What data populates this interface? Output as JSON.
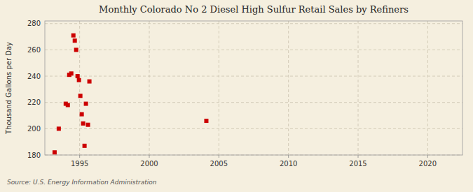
{
  "chart_data": {
    "type": "scatter",
    "title": "Monthly Colorado No 2 Diesel High Sulfur Retail Sales by Refiners",
    "ylabel": "Thousand Gallons per Day",
    "source": "Source: U.S. Energy Information Administration",
    "color": "#cc0000",
    "marker": "square",
    "grid": true,
    "xlim": [
      1992.5,
      2022.5
    ],
    "ylim": [
      180,
      282
    ],
    "xticks": [
      1995,
      2000,
      2005,
      2010,
      2015,
      2020
    ],
    "yticks": [
      180,
      200,
      220,
      240,
      260,
      280
    ],
    "x": [
      1993.2,
      1993.5,
      1994.0,
      1994.15,
      1994.25,
      1994.4,
      1994.55,
      1994.65,
      1994.75,
      1994.85,
      1994.95,
      1995.05,
      1995.15,
      1995.25,
      1995.35,
      1995.45,
      1995.6,
      1995.7,
      2004.1
    ],
    "values": [
      182,
      200,
      219,
      218,
      241,
      242,
      271,
      267,
      260,
      240,
      237,
      225,
      211,
      204,
      187,
      219,
      203,
      236,
      206
    ]
  }
}
